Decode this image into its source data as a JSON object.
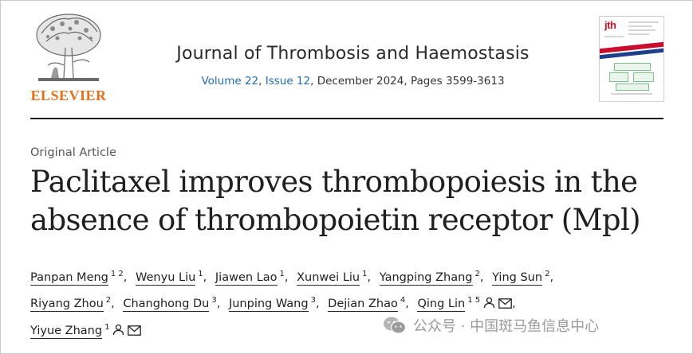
{
  "publisher": {
    "name": "ELSEVIER"
  },
  "journal": {
    "title": "Journal of Thrombosis and Haemostasis",
    "volume": "Volume 22",
    "issue": "Issue 12",
    "rest": ", December 2024, Pages 3599-3613",
    "cover_logo": "jth"
  },
  "article": {
    "type": "Original Article",
    "title_line1": "Paclitaxel improves thrombopoiesis in the",
    "title_line2": "absence of thrombopoietin receptor (Mpl)"
  },
  "authors": [
    {
      "name": "Panpan Meng",
      "aff": "1 2",
      "person_icon": false,
      "mail_icon": false
    },
    {
      "name": "Wenyu Liu",
      "aff": "1",
      "person_icon": false,
      "mail_icon": false
    },
    {
      "name": "Jiawen Lao",
      "aff": "1",
      "person_icon": false,
      "mail_icon": false
    },
    {
      "name": "Xunwei Liu",
      "aff": "1",
      "person_icon": false,
      "mail_icon": false
    },
    {
      "name": "Yangping Zhang",
      "aff": "2",
      "person_icon": false,
      "mail_icon": false
    },
    {
      "name": "Ying Sun",
      "aff": "2",
      "person_icon": false,
      "mail_icon": false
    },
    {
      "name": "Riyang Zhou",
      "aff": "2",
      "person_icon": false,
      "mail_icon": false
    },
    {
      "name": "Changhong Du",
      "aff": "3",
      "person_icon": false,
      "mail_icon": false
    },
    {
      "name": "Junping Wang",
      "aff": "3",
      "person_icon": false,
      "mail_icon": false
    },
    {
      "name": "Dejian Zhao",
      "aff": "4",
      "person_icon": false,
      "mail_icon": false
    },
    {
      "name": "Qing Lin",
      "aff": "1 5",
      "person_icon": true,
      "mail_icon": true
    },
    {
      "name": "Yiyue Zhang",
      "aff": "1",
      "person_icon": true,
      "mail_icon": true
    }
  ],
  "watermark": {
    "text": "公众号 · 中国斑马鱼信息中心",
    "icon": "wechat-icon"
  },
  "colors": {
    "publisher": "#e3701a",
    "link": "#1f6fb0",
    "cover_red": "#c8102e",
    "cover_blue": "#1e3f8a"
  }
}
